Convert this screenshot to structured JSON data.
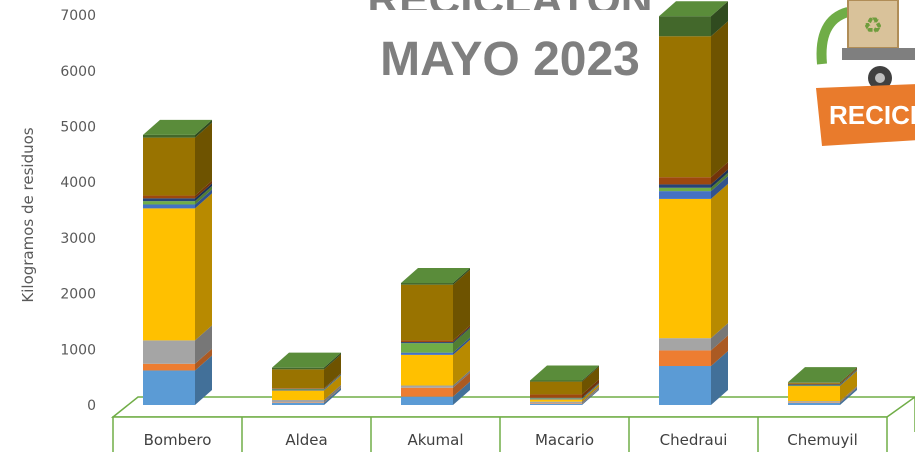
{
  "title_line1": "RECICLATÓN",
  "title_line2": "MAYO 2023",
  "logo_text": "RECICLA",
  "colors": {
    "background": "#ffffff",
    "floor_border": "#70ad47",
    "title": "#7f7f7f"
  },
  "chart_data": {
    "type": "bar",
    "stacked": true,
    "three_d": true,
    "ylabel": "Kilogramos de residuos",
    "ylim": [
      0,
      7000
    ],
    "yticks": [
      0,
      1000,
      2000,
      3000,
      4000,
      5000,
      6000,
      7000
    ],
    "categories": [
      "Bombero",
      "Aldea",
      "Akumal",
      "Macario",
      "Chedraui",
      "Chemuyil"
    ],
    "series": [
      {
        "color": "#5b9bd5",
        "values": [
          620,
          40,
          150,
          20,
          700,
          40
        ]
      },
      {
        "color": "#ed7d31",
        "values": [
          120,
          10,
          160,
          10,
          280,
          10
        ]
      },
      {
        "color": "#a5a5a5",
        "values": [
          420,
          40,
          40,
          30,
          220,
          20
        ]
      },
      {
        "color": "#ffc000",
        "values": [
          2370,
          170,
          550,
          40,
          2500,
          270
        ]
      },
      {
        "color": "#4472c4",
        "values": [
          70,
          10,
          40,
          10,
          140,
          10
        ]
      },
      {
        "color": "#70ad47",
        "values": [
          60,
          10,
          170,
          10,
          60,
          10
        ]
      },
      {
        "color": "#264478",
        "values": [
          50,
          10,
          20,
          10,
          60,
          10
        ]
      },
      {
        "color": "#9e480e",
        "values": [
          50,
          10,
          30,
          60,
          130,
          10
        ]
      },
      {
        "color": "#997300",
        "values": [
          1040,
          340,
          1000,
          230,
          2530,
          20
        ]
      },
      {
        "color": "#43682b",
        "values": [
          50,
          30,
          30,
          20,
          360,
          10
        ]
      }
    ]
  }
}
